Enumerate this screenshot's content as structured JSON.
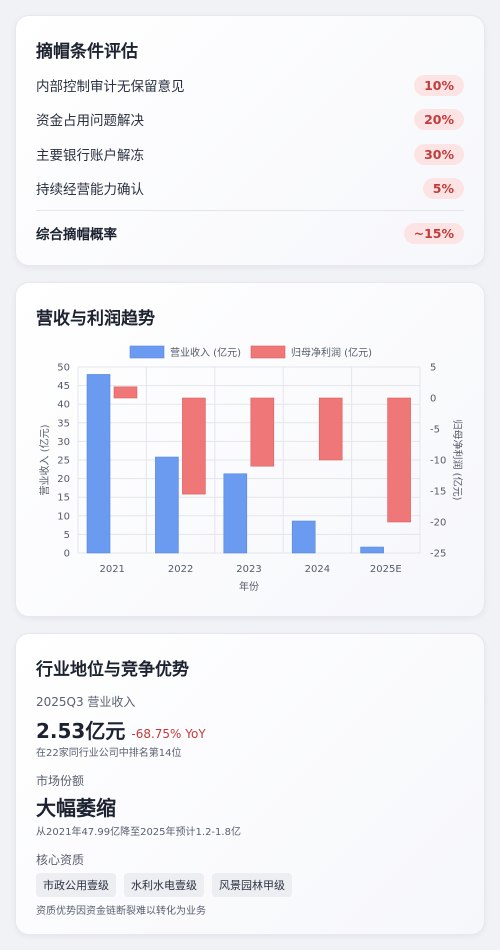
{
  "conditions": {
    "title": "摘帽条件评估",
    "items": [
      {
        "label": "内部控制审计无保留意见",
        "value": "10%"
      },
      {
        "label": "资金占用问题解决",
        "value": "20%"
      },
      {
        "label": "主要银行账户解冻",
        "value": "30%"
      },
      {
        "label": "持续经营能力确认",
        "value": "5%"
      }
    ],
    "total": {
      "label": "综合摘帽概率",
      "value": "~15%"
    }
  },
  "trend": {
    "title": "营收与利润趋势"
  },
  "chart_data": {
    "type": "bar",
    "categories": [
      "2021",
      "2022",
      "2023",
      "2024",
      "2025E"
    ],
    "series": [
      {
        "name": "营业收入 (亿元)",
        "axis": "left",
        "color": "#6b9bf0",
        "values": [
          48,
          25.8,
          21.3,
          8.6,
          1.6
        ]
      },
      {
        "name": "归母净利润 (亿元)",
        "axis": "right",
        "color": "#ef7777",
        "values": [
          1.8,
          -15.5,
          -11,
          -10,
          -20
        ]
      }
    ],
    "xlabel": "年份",
    "ylabel": "营业收入 (亿元)",
    "y2label": "归母净利润 (亿元)",
    "ylim": [
      0,
      50
    ],
    "y2lim": [
      -25,
      5
    ],
    "yticks": [
      "0",
      "5",
      "10",
      "15",
      "20",
      "25",
      "30",
      "35",
      "40",
      "45",
      "50"
    ],
    "y2ticks": [
      "5",
      "0",
      "-5",
      "-10",
      "-15",
      "-20",
      "-25"
    ],
    "grid": true,
    "legend": "top"
  },
  "industry": {
    "title": "行业地位与竞争优势",
    "revenue_label": "2025Q3 营业收入",
    "revenue_value": "2.53亿元",
    "revenue_change": "-68.75% YoY",
    "rank_note": "在22家同行业公司中排名第14位",
    "share_label": "市场份额",
    "share_value": "大幅萎缩",
    "share_note": "从2021年47.99亿降至2025年预计1.2-1.8亿",
    "assets_label": "核心资质",
    "tags": [
      "市政公用壹级",
      "水利水电壹级",
      "风景园林甲级"
    ],
    "assets_note": "资质优势因资金链断裂难以转化为业务"
  }
}
